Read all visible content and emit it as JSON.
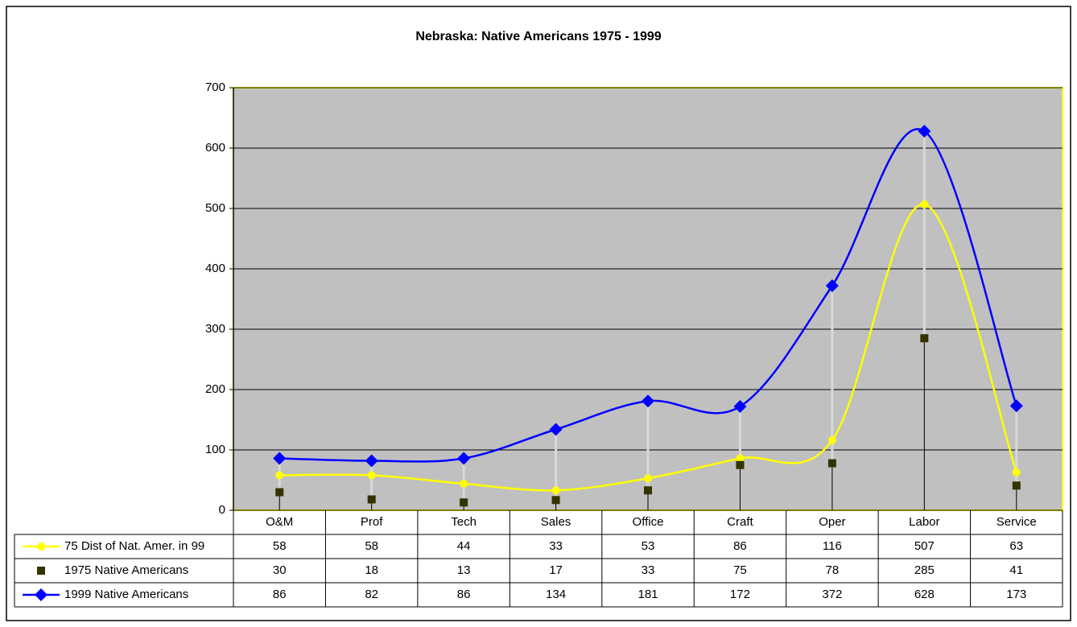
{
  "chart_data": {
    "type": "line",
    "title": "Nebraska: Native Americans 1975 - 1999",
    "categories": [
      "O&M",
      "Prof",
      "Tech",
      "Sales",
      "Office",
      "Craft",
      "Oper",
      "Labor",
      "Service"
    ],
    "series": [
      {
        "name": "75 Dist of Nat. Amer. in 99",
        "color": "#ffff00",
        "marker": "circle",
        "smooth": true,
        "line": true,
        "values": [
          58,
          58,
          44,
          33,
          53,
          86,
          116,
          507,
          63
        ]
      },
      {
        "name": "1975 Native Americans",
        "color": "#333300",
        "marker": "square",
        "smooth": false,
        "line": false,
        "values": [
          30,
          18,
          13,
          17,
          33,
          75,
          78,
          285,
          41
        ]
      },
      {
        "name": "1999 Native Americans",
        "color": "#0000ff",
        "marker": "diamond",
        "smooth": true,
        "line": true,
        "values": [
          86,
          82,
          86,
          134,
          181,
          172,
          372,
          628,
          173
        ]
      }
    ],
    "ylim": [
      0,
      700
    ],
    "yticks": [
      0,
      100,
      200,
      300,
      400,
      500,
      600,
      700
    ],
    "grid": true,
    "data_table": true,
    "plot_background": "#c0c0c0"
  }
}
